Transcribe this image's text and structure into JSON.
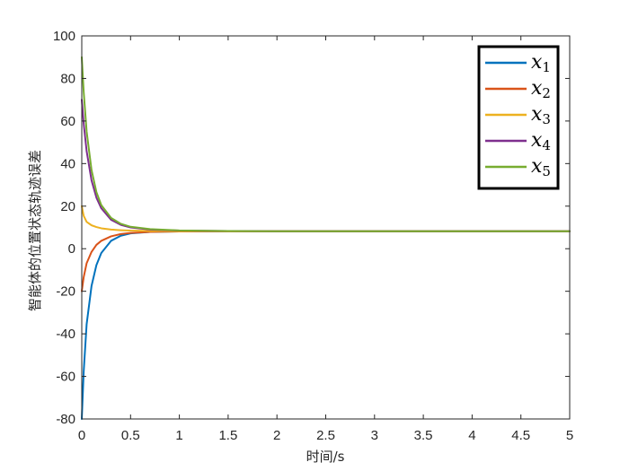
{
  "chart_data": {
    "type": "line",
    "xlabel": "时间/s",
    "ylabel": "智能体的位置状态轨迹误差",
    "xlim": [
      0,
      5
    ],
    "ylim": [
      -80,
      100
    ],
    "xticks": [
      0,
      0.5,
      1,
      1.5,
      2,
      2.5,
      3,
      3.5,
      4,
      4.5,
      5
    ],
    "xtick_labels": [
      "0",
      "0.5",
      "1",
      "1.5",
      "2",
      "2.5",
      "3",
      "3.5",
      "4",
      "4.5",
      "5"
    ],
    "yticks": [
      -80,
      -60,
      -40,
      -20,
      0,
      20,
      40,
      60,
      80,
      100
    ],
    "ytick_labels": [
      "-80",
      "-60",
      "-40",
      "-20",
      "0",
      "20",
      "40",
      "60",
      "80",
      "100"
    ],
    "grid": false,
    "legend_position": "top-right",
    "series": [
      {
        "name": "x1",
        "label_base": "x",
        "label_sub": "1",
        "color": "#0072BD",
        "x": [
          0,
          0.02,
          0.05,
          0.1,
          0.15,
          0.2,
          0.3,
          0.4,
          0.5,
          0.7,
          1,
          1.5,
          2,
          3,
          4,
          5
        ],
        "y": [
          -80,
          -57.5,
          -35.4,
          -17.5,
          -7.7,
          -2.0,
          3.7,
          6.1,
          7.2,
          7.9,
          8.1,
          8.2,
          8.2,
          8.2,
          8.2,
          8.2
        ]
      },
      {
        "name": "x2",
        "label_base": "x",
        "label_sub": "2",
        "color": "#D95319",
        "x": [
          0,
          0.02,
          0.05,
          0.1,
          0.15,
          0.2,
          0.3,
          0.4,
          0.5,
          0.7,
          1,
          1.5,
          2,
          3,
          4,
          5
        ],
        "y": [
          -20,
          -13.3,
          -6.8,
          -1.5,
          1.8,
          3.7,
          5.8,
          6.9,
          7.4,
          7.9,
          8.1,
          8.2,
          8.2,
          8.2,
          8.2,
          8.2
        ]
      },
      {
        "name": "x3",
        "label_base": "x",
        "label_sub": "3",
        "color": "#EDB120",
        "x": [
          0,
          0.02,
          0.05,
          0.1,
          0.15,
          0.2,
          0.3,
          0.4,
          0.5,
          0.7,
          1,
          1.5,
          2,
          3,
          4,
          5
        ],
        "y": [
          20,
          15.4,
          12.6,
          11.0,
          10.2,
          9.6,
          9.0,
          8.7,
          8.5,
          8.3,
          8.2,
          8.2,
          8.2,
          8.2,
          8.2,
          8.2
        ]
      },
      {
        "name": "x4",
        "label_base": "x",
        "label_sub": "4",
        "color": "#7E2F8E",
        "x": [
          0,
          0.02,
          0.05,
          0.1,
          0.15,
          0.2,
          0.3,
          0.4,
          0.5,
          0.7,
          1,
          1.5,
          2,
          3,
          4,
          5
        ],
        "y": [
          70,
          58.6,
          45.8,
          32.1,
          24.0,
          19.0,
          13.6,
          11.2,
          10.0,
          9.0,
          8.5,
          8.3,
          8.2,
          8.2,
          8.2,
          8.2
        ]
      },
      {
        "name": "x5",
        "label_base": "x",
        "label_sub": "5",
        "color": "#77AC30",
        "x": [
          0,
          0.02,
          0.05,
          0.1,
          0.15,
          0.2,
          0.3,
          0.4,
          0.5,
          0.7,
          1,
          1.5,
          2,
          3,
          4,
          5
        ],
        "y": [
          90,
          73.5,
          55.0,
          37.0,
          26.6,
          20.5,
          14.5,
          11.7,
          10.3,
          9.2,
          8.6,
          8.3,
          8.2,
          8.2,
          8.2,
          8.2
        ]
      }
    ]
  }
}
